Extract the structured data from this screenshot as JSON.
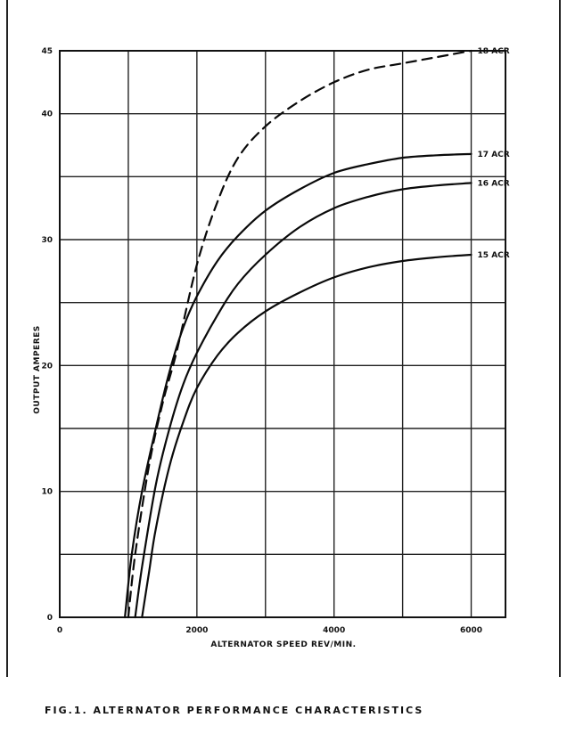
{
  "chart_data": {
    "type": "line",
    "caption": "FIG.1.  ALTERNATOR  PERFORMANCE   CHARACTERISTICS",
    "xlabel": "ALTERNATOR SPEED REV/MIN.",
    "ylabel": "OUTPUT  AMPERES",
    "xlim": [
      0,
      6500
    ],
    "ylim": [
      0,
      45
    ],
    "x_ticks": [
      {
        "value": 0,
        "label": "0"
      },
      {
        "value": 2000,
        "label": "2000"
      },
      {
        "value": 4000,
        "label": "4000"
      },
      {
        "value": 6000,
        "label": "6000"
      }
    ],
    "y_ticks": [
      {
        "value": 0,
        "label": "0"
      },
      {
        "value": 10,
        "label": "10"
      },
      {
        "value": 20,
        "label": "20"
      },
      {
        "value": 30,
        "label": "30"
      },
      {
        "value": 40,
        "label": "40"
      },
      {
        "value": 45,
        "label": "45"
      }
    ],
    "grid": true,
    "grid_x_step": 1000,
    "grid_y_step": 5,
    "series": [
      {
        "name": "18 ACR",
        "style": "dashed",
        "x": [
          1000,
          1100,
          1300,
          1500,
          1700,
          2000,
          2300,
          2600,
          3000,
          3500,
          4000,
          4500,
          5000,
          5500,
          6000
        ],
        "y": [
          0,
          5,
          12,
          17,
          21,
          28,
          33,
          36.5,
          39,
          41,
          42.5,
          43.5,
          44,
          44.5,
          45
        ]
      },
      {
        "name": "17 ACR",
        "style": "solid",
        "x": [
          950,
          1050,
          1200,
          1400,
          1600,
          1800,
          2000,
          2300,
          2600,
          3000,
          3500,
          4000,
          4500,
          5000,
          5500,
          6000
        ],
        "y": [
          0,
          5,
          10,
          15,
          19.5,
          23,
          25.5,
          28.3,
          30.3,
          32.3,
          34,
          35.3,
          36,
          36.5,
          36.7,
          36.8
        ]
      },
      {
        "name": "16 ACR",
        "style": "solid",
        "x": [
          1100,
          1200,
          1400,
          1600,
          1800,
          2000,
          2300,
          2600,
          3000,
          3500,
          4000,
          4500,
          5000,
          5500,
          6000
        ],
        "y": [
          0,
          4,
          10.5,
          15,
          18.5,
          21,
          24,
          26.5,
          28.8,
          31,
          32.5,
          33.4,
          34,
          34.3,
          34.5
        ]
      },
      {
        "name": "15 ACR",
        "style": "solid",
        "x": [
          1200,
          1300,
          1400,
          1600,
          1800,
          2000,
          2300,
          2600,
          3000,
          3500,
          4000,
          4500,
          5000,
          5500,
          6000
        ],
        "y": [
          0,
          3.5,
          7,
          12,
          15.5,
          18.2,
          20.8,
          22.6,
          24.3,
          25.8,
          27,
          27.8,
          28.3,
          28.6,
          28.8
        ]
      }
    ]
  }
}
